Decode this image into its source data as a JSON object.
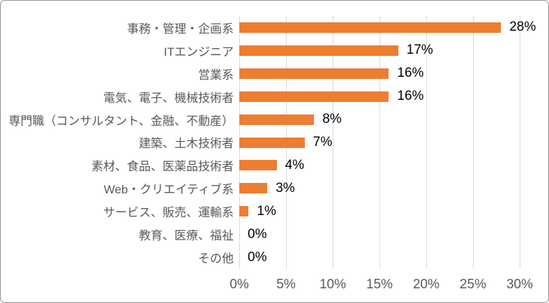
{
  "chart": {
    "background": "#FFFFFF",
    "border_color": "#8F8F8F"
  },
  "chart_data": {
    "type": "bar",
    "orientation": "horizontal",
    "title": "",
    "categories": [
      "事務・管理・企画系",
      "ITエンジニア",
      "営業系",
      "電気、電子、機械技術者",
      "専門職（コンサルタント、金融、不動産）",
      "建築、土木技術者",
      "素材、食品、医薬品技術者",
      "Web・クリエイティブ系",
      "サービス、販売、運輸系",
      "教育、医療、福祉",
      "その他"
    ],
    "values": [
      28,
      17,
      16,
      16,
      8,
      7,
      4,
      3,
      1,
      0,
      0
    ],
    "value_labels": [
      "28%",
      "17%",
      "16%",
      "16%",
      "8%",
      "7%",
      "4%",
      "3%",
      "1%",
      "0%",
      "0%"
    ],
    "xlim": [
      0,
      30
    ],
    "xticks": [
      0,
      5,
      10,
      15,
      20,
      25,
      30
    ],
    "xtick_labels": [
      "0%",
      "5%",
      "10%",
      "15%",
      "20%",
      "25%",
      "30%"
    ],
    "xlabel": "",
    "ylabel": "",
    "grid": true,
    "gridline_color": "#D9D9D9",
    "bar_color": "#ED7D31",
    "category_label_color": "#595959",
    "value_label_color": "#000000",
    "axis_label_color": "#595959",
    "legend": "none"
  }
}
